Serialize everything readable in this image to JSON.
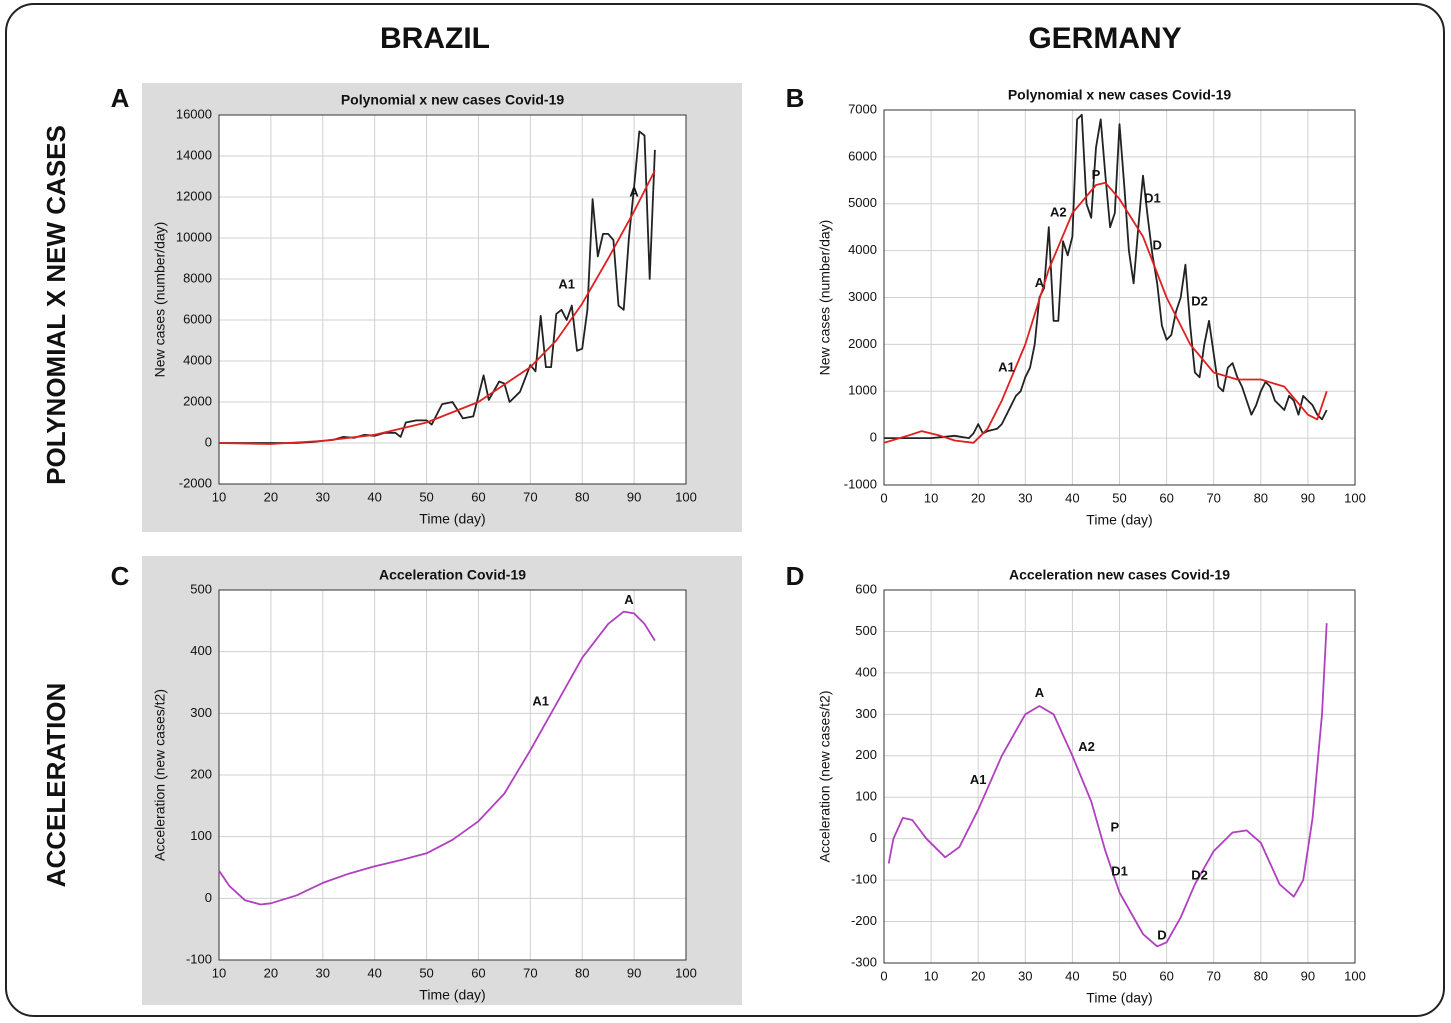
{
  "header": {
    "columns": [
      "BRAZIL",
      "GERMANY"
    ],
    "rows": [
      "POLYNOMIAL X NEW CASES",
      "ACCELERATION"
    ]
  },
  "chart_data": [
    {
      "type": "line",
      "panel": "A",
      "title": "Polynomial x new cases Covid-19",
      "xlabel": "Time (day)",
      "ylabel": "New cases (number/day)",
      "background": "#dcdcdc",
      "grid": true,
      "xlim": [
        10,
        100
      ],
      "ylim": [
        -2000,
        16000
      ],
      "xticks": [
        10,
        20,
        30,
        40,
        50,
        60,
        70,
        80,
        90,
        100
      ],
      "yticks": [
        -2000,
        0,
        2000,
        4000,
        6000,
        8000,
        10000,
        12000,
        14000,
        16000
      ],
      "series": [
        {
          "color": "#222222",
          "x": [
            10,
            25,
            28,
            30,
            32,
            34,
            36,
            38,
            40,
            42,
            44,
            45,
            46,
            48,
            50,
            51,
            53,
            55,
            57,
            59,
            61,
            62,
            64,
            65,
            66,
            68,
            70,
            71,
            72,
            73,
            74,
            75,
            76,
            77,
            78,
            79,
            80,
            81,
            82,
            83,
            84,
            85,
            86,
            87,
            88,
            89,
            90,
            91,
            92,
            93,
            94
          ],
          "values": [
            0,
            0,
            50,
            100,
            150,
            300,
            250,
            400,
            350,
            500,
            500,
            300,
            1000,
            1100,
            1100,
            900,
            1900,
            2000,
            1200,
            1300,
            3300,
            2100,
            3000,
            2900,
            2000,
            2500,
            3800,
            3500,
            6200,
            3700,
            3700,
            6300,
            6500,
            6000,
            6700,
            4500,
            4600,
            6500,
            11900,
            9100,
            10200,
            10200,
            9900,
            6700,
            6500,
            10000,
            12500,
            15200,
            15000,
            8000,
            14300
          ]
        },
        {
          "color": "#e02020",
          "x": [
            10,
            20,
            30,
            40,
            50,
            60,
            70,
            75,
            80,
            85,
            90,
            94
          ],
          "values": [
            0,
            -50,
            100,
            400,
            1000,
            2000,
            3700,
            5000,
            6800,
            9000,
            11300,
            13300
          ]
        }
      ],
      "annotations": [
        {
          "text": "A1",
          "x": 77,
          "y": 7700
        },
        {
          "text": "A",
          "x": 90,
          "y": 12200
        }
      ]
    },
    {
      "type": "line",
      "panel": "B",
      "title": "Polynomial x new cases Covid-19",
      "xlabel": "Time (day)",
      "ylabel": "New cases (number/day)",
      "background": "#ffffff",
      "grid": true,
      "xlim": [
        0,
        100
      ],
      "ylim": [
        -1000,
        7000
      ],
      "xticks": [
        0,
        10,
        20,
        30,
        40,
        50,
        60,
        70,
        80,
        90,
        100
      ],
      "yticks": [
        -1000,
        0,
        1000,
        2000,
        3000,
        4000,
        5000,
        6000,
        7000
      ],
      "series": [
        {
          "color": "#222222",
          "x": [
            0,
            5,
            10,
            15,
            18,
            19,
            20,
            21,
            22,
            24,
            25,
            27,
            28,
            29,
            30,
            31,
            32,
            33,
            34,
            35,
            36,
            37,
            38,
            39,
            40,
            41,
            42,
            43,
            44,
            45,
            46,
            47,
            48,
            49,
            50,
            51,
            52,
            53,
            54,
            55,
            56,
            57,
            58,
            59,
            60,
            61,
            62,
            63,
            64,
            65,
            66,
            67,
            68,
            69,
            70,
            71,
            72,
            73,
            74,
            75,
            76,
            77,
            78,
            79,
            80,
            81,
            82,
            83,
            84,
            85,
            86,
            87,
            88,
            89,
            90,
            91,
            92,
            93,
            94
          ],
          "values": [
            0,
            0,
            0,
            50,
            0,
            100,
            300,
            100,
            150,
            200,
            300,
            700,
            900,
            1000,
            1300,
            1500,
            2000,
            3000,
            3200,
            4500,
            2500,
            2500,
            4200,
            3900,
            4300,
            6800,
            6900,
            5000,
            4700,
            6200,
            6800,
            5600,
            4500,
            4800,
            6700,
            5400,
            4000,
            3300,
            4500,
            5600,
            4700,
            3900,
            3300,
            2400,
            2100,
            2200,
            2700,
            3000,
            3700,
            2400,
            1400,
            1300,
            2000,
            2500,
            1800,
            1100,
            1000,
            1500,
            1600,
            1300,
            1100,
            800,
            500,
            700,
            1000,
            1200,
            1100,
            800,
            700,
            600,
            900,
            800,
            500,
            900,
            800,
            700,
            500,
            400,
            600
          ]
        },
        {
          "color": "#e02020",
          "x": [
            0,
            5,
            8,
            12,
            15,
            19,
            22,
            25,
            30,
            35,
            40,
            45,
            47,
            50,
            55,
            60,
            65,
            70,
            75,
            80,
            85,
            90,
            92,
            94
          ],
          "values": [
            -100,
            50,
            150,
            50,
            -50,
            -100,
            200,
            800,
            2000,
            3600,
            4800,
            5400,
            5450,
            5100,
            4300,
            3000,
            2000,
            1400,
            1250,
            1250,
            1100,
            500,
            400,
            1000
          ]
        }
      ],
      "annotations": [
        {
          "text": "A1",
          "x": 26,
          "y": 1500
        },
        {
          "text": "A",
          "x": 33,
          "y": 3300
        },
        {
          "text": "A2",
          "x": 37,
          "y": 4800
        },
        {
          "text": "P",
          "x": 45,
          "y": 5600
        },
        {
          "text": "D1",
          "x": 57,
          "y": 5100
        },
        {
          "text": "D",
          "x": 58,
          "y": 4100
        },
        {
          "text": "D2",
          "x": 67,
          "y": 2900
        }
      ]
    },
    {
      "type": "line",
      "panel": "C",
      "title": "Acceleration Covid-19",
      "xlabel": "Time (day)",
      "ylabel": "Acceleration (new cases/t2)",
      "background": "#dcdcdc",
      "grid": true,
      "xlim": [
        10,
        100
      ],
      "ylim": [
        -100,
        500
      ],
      "xticks": [
        10,
        20,
        30,
        40,
        50,
        60,
        70,
        80,
        90,
        100
      ],
      "yticks": [
        -100,
        0,
        100,
        200,
        300,
        400,
        500
      ],
      "series": [
        {
          "color": "#b040c0",
          "x": [
            10,
            12,
            15,
            18,
            20,
            25,
            30,
            35,
            40,
            45,
            50,
            55,
            60,
            65,
            70,
            75,
            80,
            85,
            88,
            90,
            92,
            94
          ],
          "values": [
            45,
            20,
            -3,
            -10,
            -8,
            5,
            25,
            40,
            52,
            62,
            73,
            95,
            125,
            170,
            240,
            315,
            390,
            445,
            465,
            462,
            445,
            418
          ]
        }
      ],
      "annotations": [
        {
          "text": "A1",
          "x": 72,
          "y": 318
        },
        {
          "text": "A",
          "x": 89,
          "y": 483
        }
      ]
    },
    {
      "type": "line",
      "panel": "D",
      "title": "Acceleration new cases Covid-19",
      "xlabel": "Time (day)",
      "ylabel": "Acceleration (new cases/t2)",
      "background": "#ffffff",
      "grid": true,
      "xlim": [
        0,
        100
      ],
      "ylim": [
        -300,
        600
      ],
      "xticks": [
        0,
        10,
        20,
        30,
        40,
        50,
        60,
        70,
        80,
        90,
        100
      ],
      "yticks": [
        -300,
        -200,
        -100,
        0,
        100,
        200,
        300,
        400,
        500,
        600
      ],
      "series": [
        {
          "color": "#b040c0",
          "x": [
            1,
            2,
            4,
            6,
            9,
            13,
            16,
            20,
            25,
            30,
            33,
            36,
            40,
            44,
            47,
            50,
            55,
            58,
            60,
            63,
            66,
            70,
            74,
            77,
            80,
            84,
            87,
            89,
            91,
            93,
            94
          ],
          "values": [
            -60,
            0,
            50,
            45,
            0,
            -45,
            -20,
            70,
            200,
            300,
            320,
            300,
            200,
            90,
            -30,
            -130,
            -230,
            -260,
            -250,
            -190,
            -110,
            -30,
            15,
            20,
            -10,
            -110,
            -140,
            -100,
            50,
            300,
            520
          ]
        }
      ],
      "annotations": [
        {
          "text": "A1",
          "x": 20,
          "y": 140
        },
        {
          "text": "A",
          "x": 33,
          "y": 350
        },
        {
          "text": "A2",
          "x": 43,
          "y": 220
        },
        {
          "text": "P",
          "x": 49,
          "y": 25
        },
        {
          "text": "D1",
          "x": 50,
          "y": -80
        },
        {
          "text": "D",
          "x": 59,
          "y": -235
        },
        {
          "text": "D2",
          "x": 67,
          "y": -90
        }
      ]
    }
  ]
}
